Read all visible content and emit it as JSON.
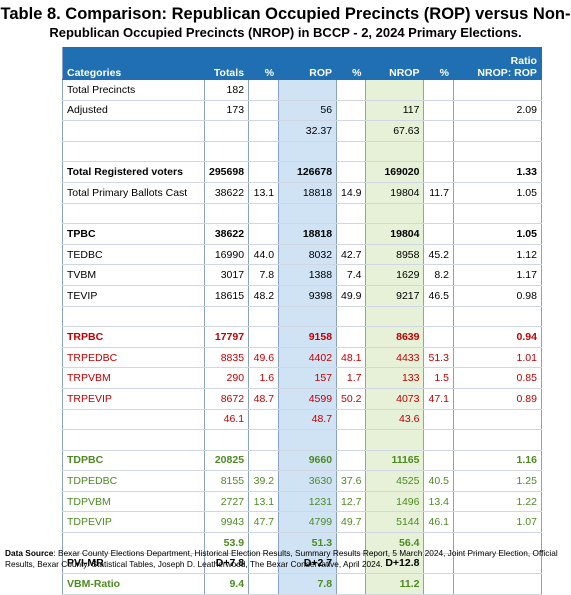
{
  "title_line1": "Table 8. Comparison: Republican Occupied Precincts (ROP) versus Non-",
  "title_line2": "Republican Occupied Precincts (NROP) in BCCP - 2, 2024 Primary Elections.",
  "columns": [
    "Categories",
    "Totals",
    "%",
    "ROP",
    "%",
    "NROP",
    "%",
    "Ratio",
    "NROP: ROP"
  ],
  "rows": [
    {
      "style": "normal",
      "cells": [
        "Total Precincts",
        "182",
        "",
        "",
        "",
        "",
        "",
        ""
      ]
    },
    {
      "style": "normal",
      "cells": [
        "Adjusted",
        "173",
        "",
        "56",
        "",
        "117",
        "",
        "2.09"
      ]
    },
    {
      "style": "normal",
      "cells": [
        "",
        "",
        "",
        "32.37",
        "",
        "67.63",
        "",
        ""
      ]
    },
    {
      "style": "normal",
      "cells": [
        "",
        "",
        "",
        "",
        "",
        "",
        "",
        ""
      ]
    },
    {
      "style": "bold",
      "cells": [
        "Total Registered voters",
        "295698",
        "",
        "126678",
        "",
        "169020",
        "",
        "1.33"
      ]
    },
    {
      "style": "normal",
      "cells": [
        "Total Primary Ballots Cast",
        "38622",
        "13.1",
        "18818",
        "14.9",
        "19804",
        "11.7",
        "1.05"
      ]
    },
    {
      "style": "normal",
      "cells": [
        "",
        "",
        "",
        "",
        "",
        "",
        "",
        ""
      ]
    },
    {
      "style": "bold",
      "cells": [
        "TPBC",
        "38622",
        "",
        "18818",
        "",
        "19804",
        "",
        "1.05"
      ]
    },
    {
      "style": "normal",
      "cells": [
        "TEDBC",
        "16990",
        "44.0",
        "8032",
        "42.7",
        "8958",
        "45.2",
        "1.12"
      ]
    },
    {
      "style": "normal",
      "cells": [
        "TVBM",
        "3017",
        "7.8",
        "1388",
        "7.4",
        "1629",
        "8.2",
        "1.17"
      ]
    },
    {
      "style": "normal",
      "cells": [
        "TEVIP",
        "18615",
        "48.2",
        "9398",
        "49.9",
        "9217",
        "46.5",
        "0.98"
      ]
    },
    {
      "style": "normal",
      "cells": [
        "",
        "",
        "",
        "",
        "",
        "",
        "",
        ""
      ]
    },
    {
      "style": "redbold",
      "cells": [
        "TRPBC",
        "17797",
        "",
        "9158",
        "",
        "8639",
        "",
        "0.94"
      ]
    },
    {
      "style": "red",
      "cells": [
        "TRPEDBC",
        "8835",
        "49.6",
        "4402",
        "48.1",
        "4433",
        "51.3",
        "1.01"
      ]
    },
    {
      "style": "red",
      "cells": [
        "TRPVBM",
        "290",
        "1.6",
        "157",
        "1.7",
        "133",
        "1.5",
        "0.85"
      ]
    },
    {
      "style": "red",
      "cells": [
        "TRPEVIP",
        "8672",
        "48.7",
        "4599",
        "50.2",
        "4073",
        "47.1",
        "0.89"
      ]
    },
    {
      "style": "red",
      "cells": [
        "",
        "46.1",
        "",
        "48.7",
        "",
        "43.6",
        "",
        ""
      ]
    },
    {
      "style": "normal",
      "cells": [
        "",
        "",
        "",
        "",
        "",
        "",
        "",
        ""
      ]
    },
    {
      "style": "greenbold",
      "cells": [
        "TDPBC",
        "20825",
        "",
        "9660",
        "",
        "11165",
        "",
        "1.16"
      ]
    },
    {
      "style": "green",
      "cells": [
        "TDPEDBC",
        "8155",
        "39.2",
        "3630",
        "37.6",
        "4525",
        "40.5",
        "1.25"
      ]
    },
    {
      "style": "green",
      "cells": [
        "TDPVBM",
        "2727",
        "13.1",
        "1231",
        "12.7",
        "1496",
        "13.4",
        "1.22"
      ]
    },
    {
      "style": "green",
      "cells": [
        "TDPEVIP",
        "9943",
        "47.7",
        "4799",
        "49.7",
        "5144",
        "46.1",
        "1.07"
      ]
    },
    {
      "style": "greenbold",
      "cells": [
        "",
        "53.9",
        "",
        "51.3",
        "",
        "56.4",
        "",
        ""
      ]
    },
    {
      "style": "bold",
      "cells": [
        "PVI-MR",
        "D+7.8",
        "",
        "D+2.7",
        "",
        "D+12.8",
        "",
        ""
      ]
    },
    {
      "style": "greenbold",
      "cells": [
        "VBM-Ratio",
        "9.4",
        "",
        "7.8",
        "",
        "11.2",
        "",
        ""
      ]
    }
  ],
  "footer_label": "Data Source",
  "footer_text": ": Bexar County Elections Department, Historical Election Results, Summary Results Report, 5 March 2024, Joint Primary Election, Official Results, Bexar County.  Statistical Tables, Joseph D. Leatherwood, The Bexar Conservative, April 2024.",
  "colors": {
    "header_bg": "#1f6fb2",
    "rop_col": "#cfe3f4",
    "nrop_col": "#e6f1d8",
    "red_text": "#c00000",
    "green_text": "#4e8a22"
  }
}
